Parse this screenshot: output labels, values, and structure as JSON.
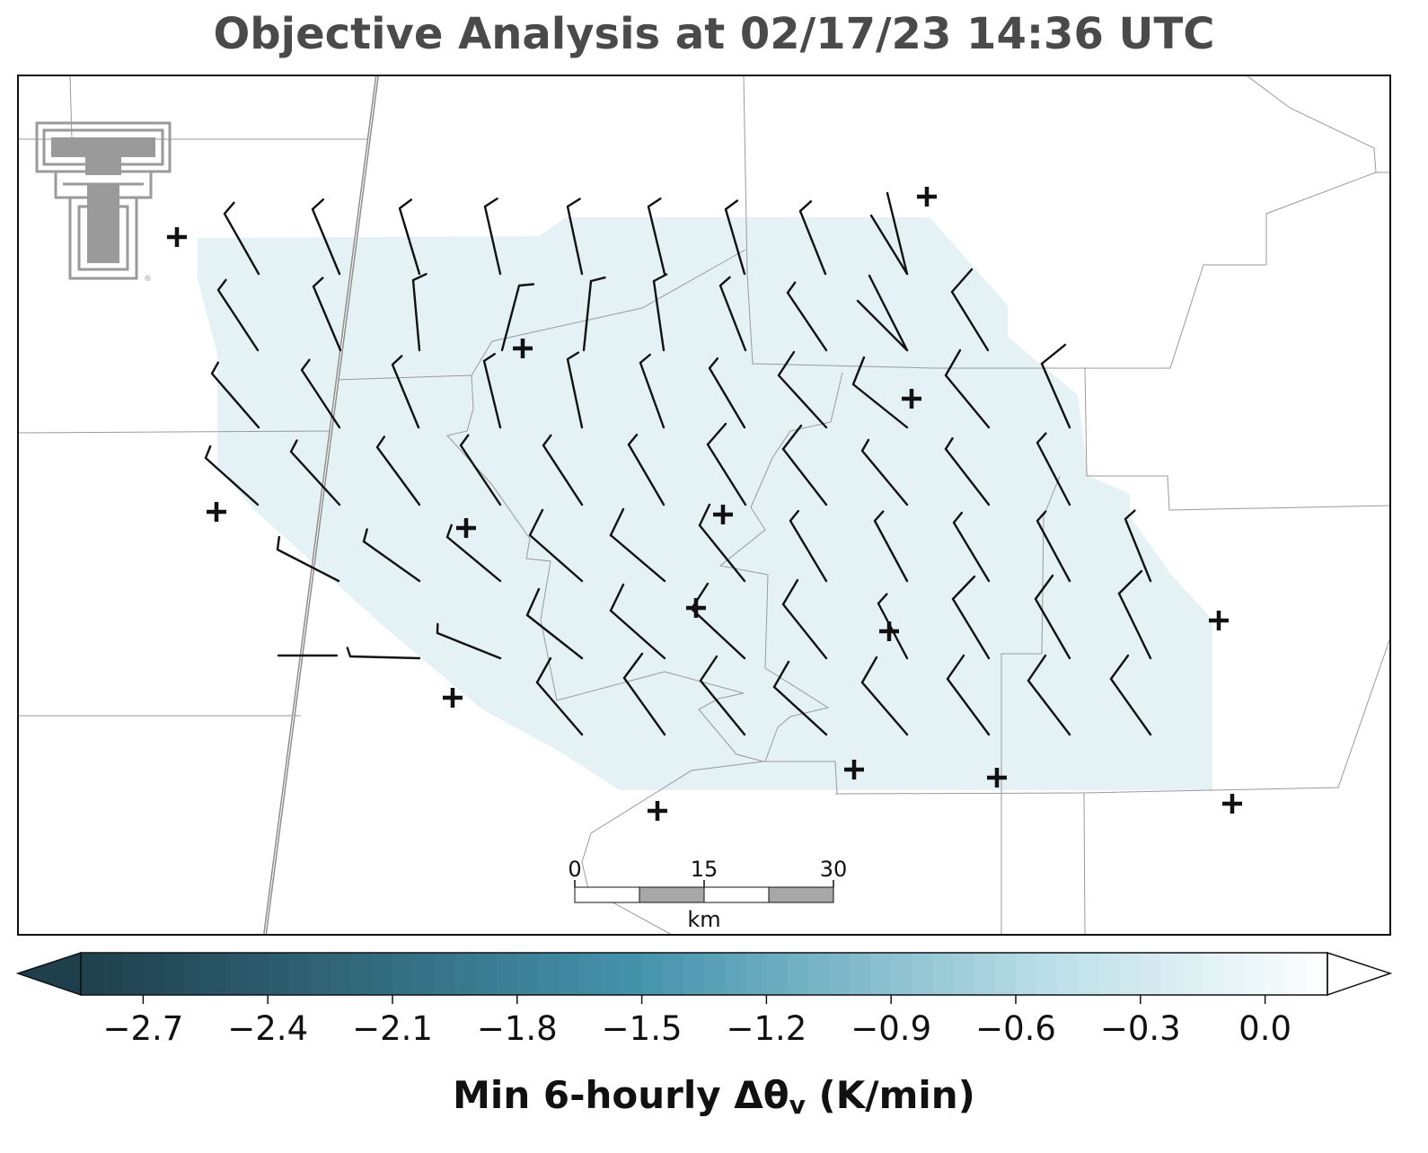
{
  "title": "Objective Analysis at 02/17/23 14:36 UTC",
  "colorbar": {
    "label_main": "Min 6-hourly Δθ",
    "label_sub": "v",
    "label_units": " (K/min)",
    "ticks": [
      "−2.7",
      "−2.4",
      "−2.1",
      "−1.8",
      "−1.5",
      "−1.2",
      "−0.9",
      "−0.6",
      "−0.3",
      "0.0"
    ],
    "range": [
      -2.85,
      0.15
    ],
    "extend": "both",
    "colors": {
      "low": "#1f3f4c",
      "mid": "#4593ad",
      "light": "#bcdfe8",
      "high": "#ffffff"
    }
  },
  "scale_bar": {
    "labels": [
      "0",
      "15",
      "30"
    ],
    "unit": "km"
  },
  "logo": {
    "name": "Texas Tech Double T",
    "color": "#9a9a9a"
  },
  "fill_color": "#e4f1f5",
  "station_marker": "plus"
}
